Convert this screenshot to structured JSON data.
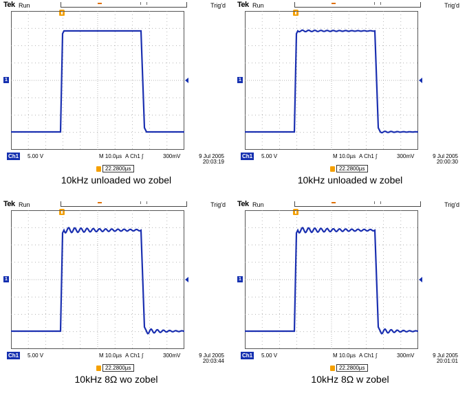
{
  "panels": [
    {
      "header": {
        "brand": "Tek",
        "state": "Run",
        "trigger_status": "Trig'd"
      },
      "status": {
        "channel": "Ch1",
        "volts_div": "5.00 V",
        "timebase": "M 10.0µs",
        "trigger_source": "A  Ch1  ∫",
        "trigger_level": "300mV"
      },
      "delay": "22.2800µs",
      "date": "9 Jul  2005",
      "time": "20:03:19",
      "caption": "10kHz unloaded wo zobel",
      "ringing": 0.0
    },
    {
      "header": {
        "brand": "Tek",
        "state": "Run",
        "trigger_status": "Trig'd"
      },
      "status": {
        "channel": "Ch1",
        "volts_div": "5.00 V",
        "timebase": "M 10.0µs",
        "trigger_source": "A  Ch1  ∫",
        "trigger_level": "300mV"
      },
      "delay": "22.2800µs",
      "date": "9 Jul  2005",
      "time": "20:00:30",
      "caption": "10kHz unloaded w zobel",
      "ringing": 0.3
    },
    {
      "header": {
        "brand": "Tek",
        "state": "Run",
        "trigger_status": "Trig'd"
      },
      "status": {
        "channel": "Ch1",
        "volts_div": "5.00 V",
        "timebase": "M 10.0µs",
        "trigger_source": "A  Ch1  ∫",
        "trigger_level": "300mV"
      },
      "delay": "22.2800µs",
      "date": "9 Jul  2005",
      "time": "20:03:44",
      "caption": "10kHz 8Ω wo zobel",
      "ringing": 1.0
    },
    {
      "header": {
        "brand": "Tek",
        "state": "Run",
        "trigger_status": "Trig'd"
      },
      "status": {
        "channel": "Ch1",
        "volts_div": "5.00 V",
        "timebase": "M 10.0µs",
        "trigger_source": "A  Ch1  ∫",
        "trigger_level": "300mV"
      },
      "delay": "22.2800µs",
      "date": "9 Jul  2005",
      "time": "20:01:01",
      "caption": "10kHz 8Ω w zobel",
      "ringing": 1.0
    }
  ],
  "colors": {
    "trace": "#1a2fb0",
    "grid": "#9a9a9a",
    "marker": "#f5a000"
  },
  "icons": [
    "ch1-ground-marker-icon",
    "trigger-position-icon",
    "trigger-level-arrow-icon",
    "delay-icon"
  ]
}
